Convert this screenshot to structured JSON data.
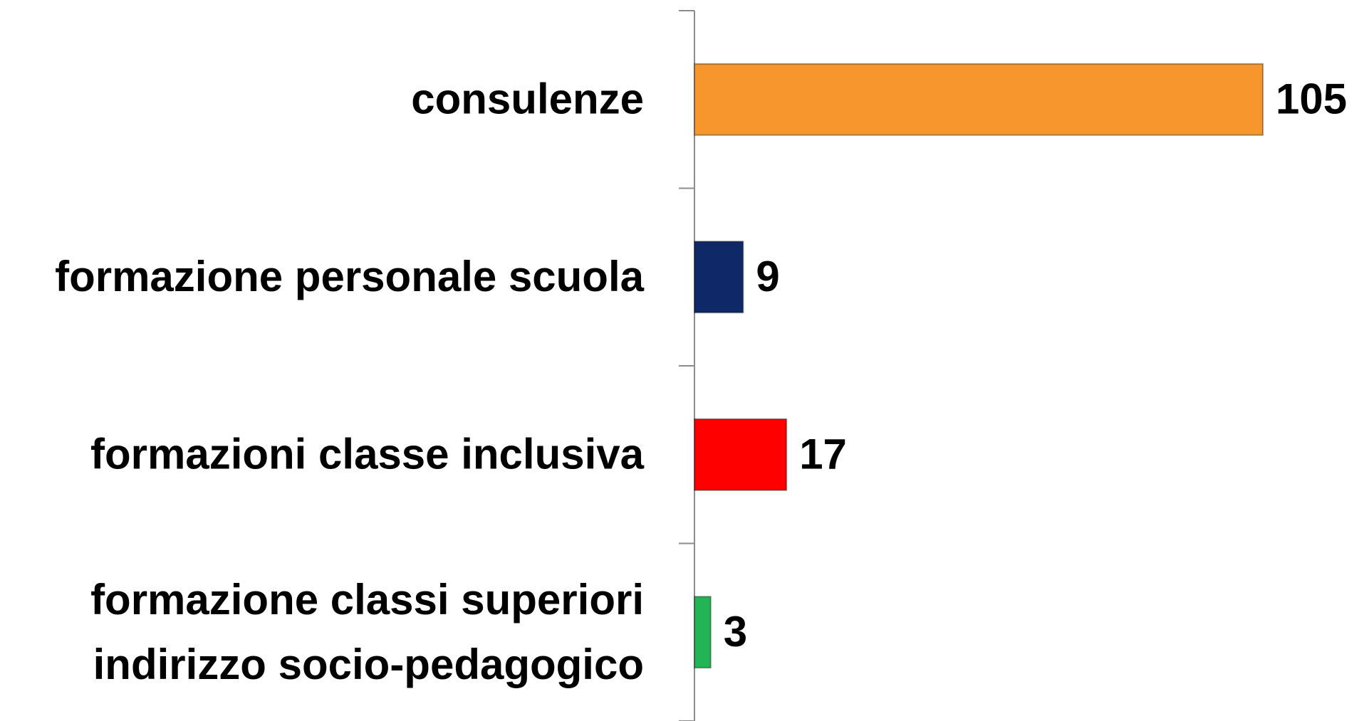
{
  "chart_data": {
    "type": "bar",
    "orientation": "horizontal",
    "categories": [
      "consulenze",
      "formazione personale scuola",
      "formazioni classe inclusiva",
      "formazione classi superiori\nindirizzo socio-pedagogico"
    ],
    "values": [
      105,
      9,
      17,
      3
    ],
    "colors": [
      "#f7962d",
      "#0e2868",
      "#ff0000",
      "#22b455"
    ]
  }
}
